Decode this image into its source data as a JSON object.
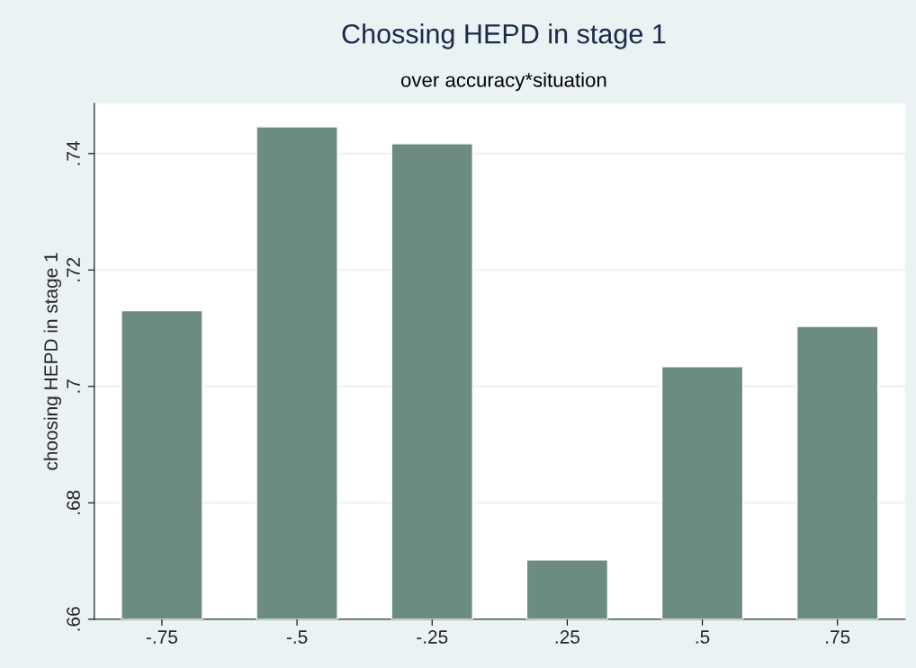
{
  "chart_data": {
    "type": "bar",
    "title": "Chossing HEPD in stage 1",
    "subtitle": "over accuracy*situation",
    "ylabel": "choosing HEPD in stage 1",
    "categories": [
      "-.75",
      "-.5",
      "-.25",
      ".25",
      ".5",
      ".75"
    ],
    "values": [
      0.713,
      0.7446,
      0.7417,
      0.6702,
      0.7034,
      0.7103
    ],
    "color": "#6d8c80",
    "ylim": [
      0.66,
      0.7486
    ],
    "yticks": [
      {
        "value": 0.66,
        "label": ".66"
      },
      {
        "value": 0.68,
        "label": ".68"
      },
      {
        "value": 0.7,
        "label": ".7"
      },
      {
        "value": 0.72,
        "label": ".72"
      },
      {
        "value": 0.74,
        "label": ".74"
      }
    ],
    "grid": "y"
  }
}
